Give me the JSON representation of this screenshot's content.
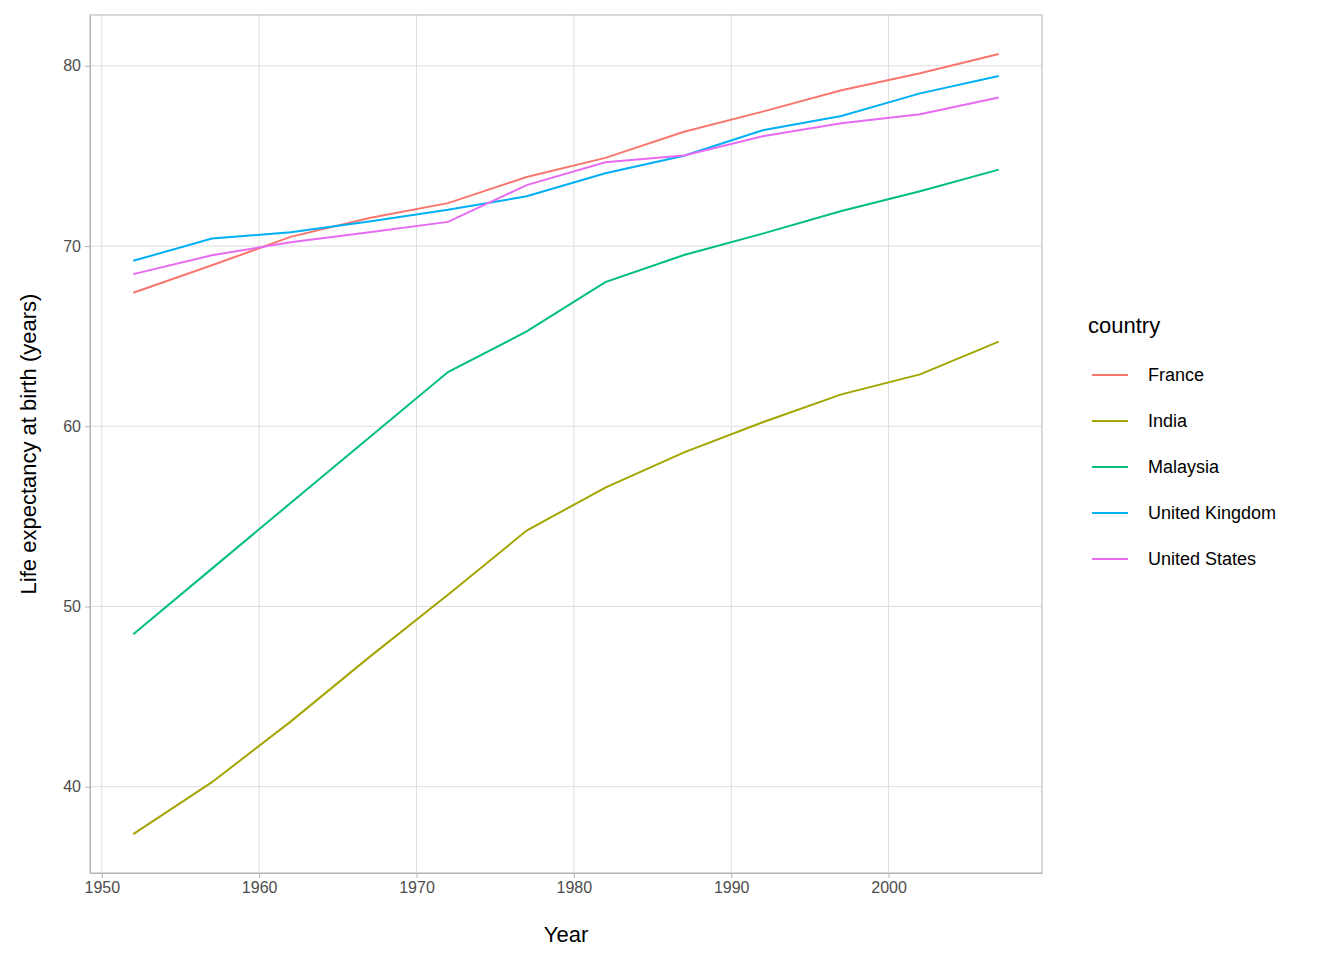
{
  "chart_data": {
    "type": "line",
    "x_label": "Year",
    "y_label": "Life expectancy at birth (years)",
    "legend_title": "country",
    "x": [
      1952,
      1957,
      1962,
      1967,
      1972,
      1977,
      1982,
      1987,
      1992,
      1997,
      2002,
      2007
    ],
    "series": [
      {
        "name": "France",
        "color": "#F8766D",
        "values": [
          67.41,
          68.93,
          70.51,
          71.55,
          72.38,
          73.83,
          74.89,
          76.34,
          77.46,
          78.64,
          79.59,
          80.66
        ]
      },
      {
        "name": "India",
        "color": "#A3A500",
        "values": [
          37.37,
          40.25,
          43.61,
          47.19,
          50.65,
          54.21,
          56.6,
          58.55,
          60.22,
          61.77,
          62.88,
          64.7
        ]
      },
      {
        "name": "Malaysia",
        "color": "#00BF7D",
        "values": [
          48.46,
          52.1,
          55.74,
          59.37,
          63.01,
          65.26,
          68.0,
          69.5,
          70.69,
          71.94,
          73.04,
          74.24
        ]
      },
      {
        "name": "United Kingdom",
        "color": "#00B0F6",
        "values": [
          69.18,
          70.42,
          70.76,
          71.36,
          72.01,
          72.76,
          74.04,
          75.01,
          76.42,
          77.22,
          78.47,
          79.43
        ]
      },
      {
        "name": "United States",
        "color": "#E76BF3",
        "values": [
          68.44,
          69.49,
          70.21,
          70.76,
          71.34,
          73.38,
          74.65,
          75.02,
          76.09,
          76.81,
          77.31,
          78.24
        ]
      }
    ],
    "xlim": [
      1949.25,
      2009.75
    ],
    "ylim": [
      35.21,
      82.82
    ],
    "xticks": [
      1950,
      1960,
      1970,
      1980,
      1990,
      2000
    ],
    "yticks": [
      40,
      50,
      60,
      70,
      80
    ],
    "grid": true,
    "legend": "right"
  }
}
